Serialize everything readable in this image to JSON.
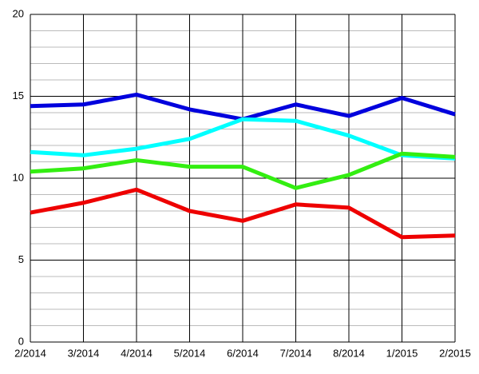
{
  "chart_data": {
    "type": "line",
    "categories": [
      "2/2014",
      "3/2014",
      "4/2014",
      "5/2014",
      "6/2014",
      "7/2014",
      "8/2014",
      "1/2015",
      "2/2015"
    ],
    "series": [
      {
        "color": "#0000dd",
        "values": [
          14.4,
          14.5,
          15.1,
          14.2,
          13.6,
          14.5,
          13.8,
          14.9,
          13.9
        ]
      },
      {
        "color": "#00ffff",
        "values": [
          11.6,
          11.4,
          11.8,
          12.4,
          13.6,
          13.5,
          12.6,
          11.4,
          11.2
        ]
      },
      {
        "color": "#33ee11",
        "values": [
          10.4,
          10.6,
          11.1,
          10.7,
          10.7,
          9.4,
          10.2,
          11.5,
          11.3
        ]
      },
      {
        "color": "#ee0000",
        "values": [
          7.9,
          8.5,
          9.3,
          8.0,
          7.4,
          8.4,
          8.2,
          6.4,
          6.5
        ]
      }
    ],
    "ylim": [
      0,
      20
    ],
    "yticks": [
      0,
      5,
      10,
      15,
      20
    ],
    "grid": true,
    "minor_grid_step": 1
  }
}
